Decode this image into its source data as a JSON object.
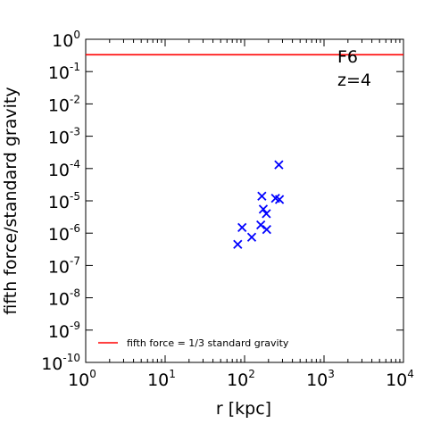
{
  "chart_data": {
    "type": "scatter",
    "xlabel": "r [kpc]",
    "ylabel": "fifth force/standard gravity",
    "xscale": "log",
    "yscale": "log",
    "xlim": [
      1,
      10000
    ],
    "ylim": [
      1e-10,
      1
    ],
    "x_ticks": [
      {
        "value": 1,
        "base": "10",
        "exp": "0"
      },
      {
        "value": 10,
        "base": "10",
        "exp": "1"
      },
      {
        "value": 100,
        "base": "10",
        "exp": "2"
      },
      {
        "value": 1000,
        "base": "10",
        "exp": "3"
      },
      {
        "value": 10000,
        "base": "10",
        "exp": "4"
      }
    ],
    "y_ticks": [
      {
        "value": 1,
        "base": "10",
        "exp": "0"
      },
      {
        "value": 0.1,
        "base": "10",
        "exp": "-1"
      },
      {
        "value": 0.01,
        "base": "10",
        "exp": "-2"
      },
      {
        "value": 0.001,
        "base": "10",
        "exp": "-3"
      },
      {
        "value": 0.0001,
        "base": "10",
        "exp": "-4"
      },
      {
        "value": 1e-05,
        "base": "10",
        "exp": "-5"
      },
      {
        "value": 1e-06,
        "base": "10",
        "exp": "-6"
      },
      {
        "value": 1e-07,
        "base": "10",
        "exp": "-7"
      },
      {
        "value": 1e-08,
        "base": "10",
        "exp": "-8"
      },
      {
        "value": 1e-09,
        "base": "10",
        "exp": "-9"
      },
      {
        "value": 1e-10,
        "base": "10",
        "exp": "-10"
      }
    ],
    "annotations": [
      "F6",
      "z=4"
    ],
    "series": [
      {
        "type": "scatter",
        "marker": "x",
        "color": "#0000ff",
        "points": [
          {
            "x": 270,
            "y": 0.00013
          },
          {
            "x": 165,
            "y": 1.4e-05
          },
          {
            "x": 245,
            "y": 1.2e-05
          },
          {
            "x": 275,
            "y": 1.1e-05
          },
          {
            "x": 172,
            "y": 5.5e-06
          },
          {
            "x": 188,
            "y": 4e-06
          },
          {
            "x": 160,
            "y": 1.8e-06
          },
          {
            "x": 93,
            "y": 1.5e-06
          },
          {
            "x": 190,
            "y": 1.3e-06
          },
          {
            "x": 123,
            "y": 7.5e-07
          },
          {
            "x": 82,
            "y": 4.5e-07
          }
        ]
      },
      {
        "name": "fifth force = 1/3 standard gravity",
        "type": "hline",
        "y": 0.333,
        "color": "#ff0000"
      }
    ],
    "grid": false,
    "legend_position": "lower-left"
  }
}
